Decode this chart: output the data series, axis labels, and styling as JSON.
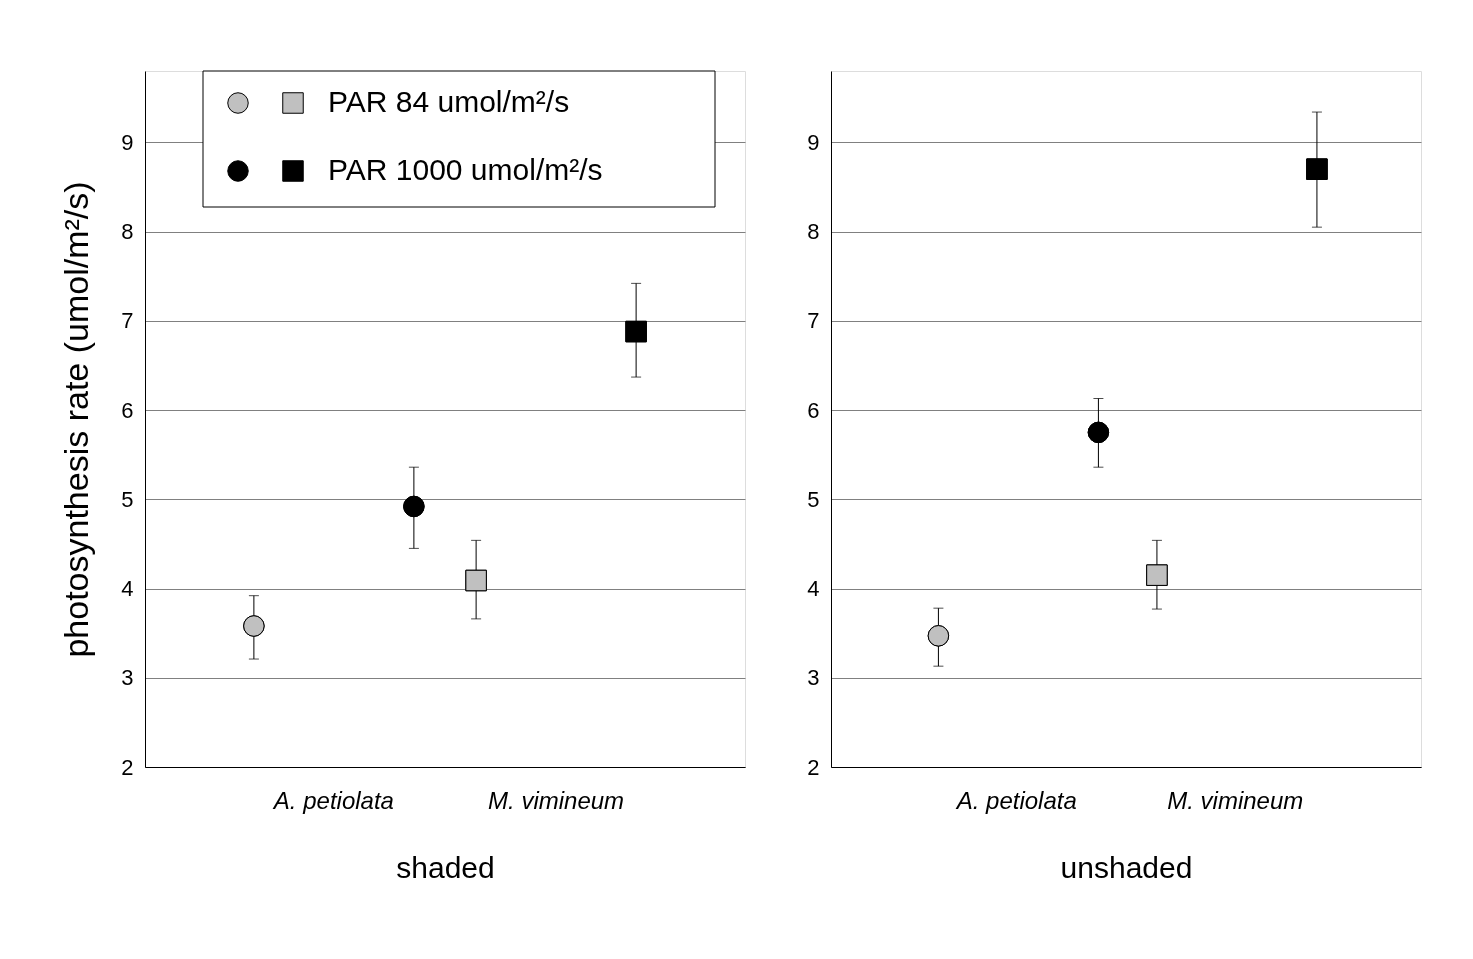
{
  "chart_data": [
    {
      "type": "scatter",
      "xlabel": "shaded",
      "ylabel": "photosynthesis rate (umol/m²/s)",
      "categories": [
        "A. petiolata",
        "M. vimineum"
      ],
      "marker": [
        "circle",
        "square"
      ],
      "ylim": [
        2,
        9.8
      ],
      "yticks": [
        2,
        3,
        4,
        5,
        6,
        7,
        8,
        9
      ],
      "grid": "y",
      "legend": "top left",
      "series": [
        {
          "name": "PAR 84 umol/m²/s",
          "color": "#c0c0c0",
          "values": [
            3.58,
            4.09
          ],
          "errors": [
            [
              3.21,
              3.92
            ],
            [
              3.66,
              4.54
            ]
          ]
        },
        {
          "name": "PAR 1000 umol/m²/s",
          "color": "#000000",
          "values": [
            4.92,
            6.88
          ],
          "errors": [
            [
              4.45,
              5.36
            ],
            [
              6.37,
              7.42
            ]
          ]
        }
      ]
    },
    {
      "type": "scatter",
      "xlabel": "unshaded",
      "categories": [
        "A. petiolata",
        "M. vimineum"
      ],
      "marker": [
        "circle",
        "square"
      ],
      "ylim": [
        2,
        9.8
      ],
      "yticks": [
        2,
        3,
        4,
        5,
        6,
        7,
        8,
        9
      ],
      "grid": "y",
      "series": [
        {
          "color": "#c0c0c0",
          "values": [
            3.47,
            4.15
          ],
          "errors": [
            [
              3.13,
              3.78
            ],
            [
              3.77,
              4.54
            ]
          ]
        },
        {
          "color": "#000000",
          "values": [
            5.75,
            8.7
          ],
          "errors": [
            [
              5.36,
              6.13
            ],
            [
              8.05,
              9.34
            ]
          ]
        }
      ]
    }
  ]
}
